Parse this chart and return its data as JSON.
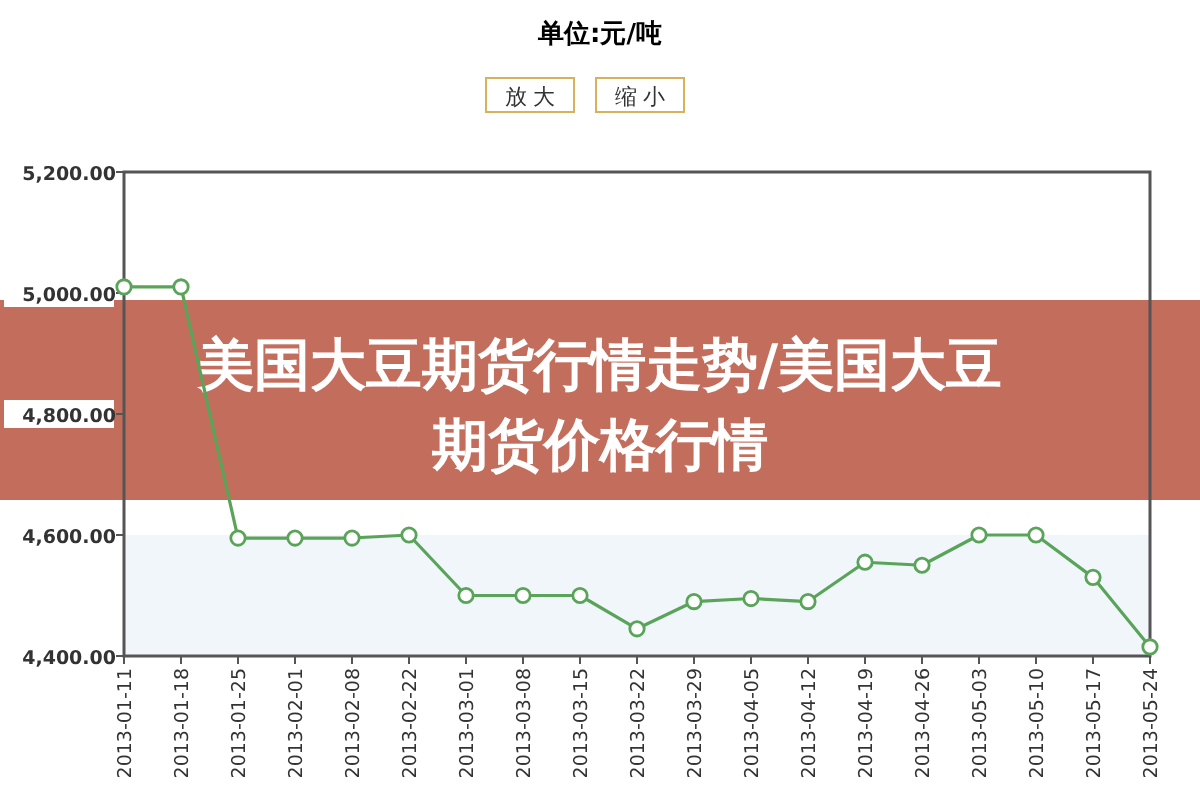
{
  "chart_data": {
    "type": "line",
    "title": "单位:元/吨",
    "categories": [
      "2013-01-11",
      "2013-01-18",
      "2013-01-25",
      "2013-02-01",
      "2013-02-08",
      "2013-02-22",
      "2013-03-01",
      "2013-03-08",
      "2013-03-15",
      "2013-03-22",
      "2013-03-29",
      "2013-04-05",
      "2013-04-12",
      "2013-04-19",
      "2013-04-26",
      "2013-05-03",
      "2013-05-10",
      "2013-05-17",
      "2013-05-24"
    ],
    "series": [
      {
        "color": "#5aa45a",
        "values": [
          5010,
          5010,
          4595,
          4595,
          4595,
          4600,
          4500,
          4500,
          4500,
          4445,
          4490,
          4495,
          4490,
          4555,
          4550,
          4600,
          4600,
          4530,
          4415
        ]
      }
    ],
    "ylim": [
      4400,
      5200
    ],
    "yticks": [
      {
        "value": 4400,
        "label": "4,400.00"
      },
      {
        "value": 4600,
        "label": "4,600.00"
      },
      {
        "value": 4800,
        "label": "4,800.00"
      },
      {
        "value": 5000,
        "label": "5,000.00"
      },
      {
        "value": 5200,
        "label": "5,200.00"
      }
    ],
    "bands": [
      {
        "axis": "y",
        "from": 4400,
        "to": 4600,
        "color": "#f1f6fb"
      }
    ],
    "marker": "circle",
    "line_style": "solid",
    "annotations": [
      "放 大",
      "缩 小",
      "美国大豆期货行情走势/美国大豆期货价格行情"
    ]
  }
}
